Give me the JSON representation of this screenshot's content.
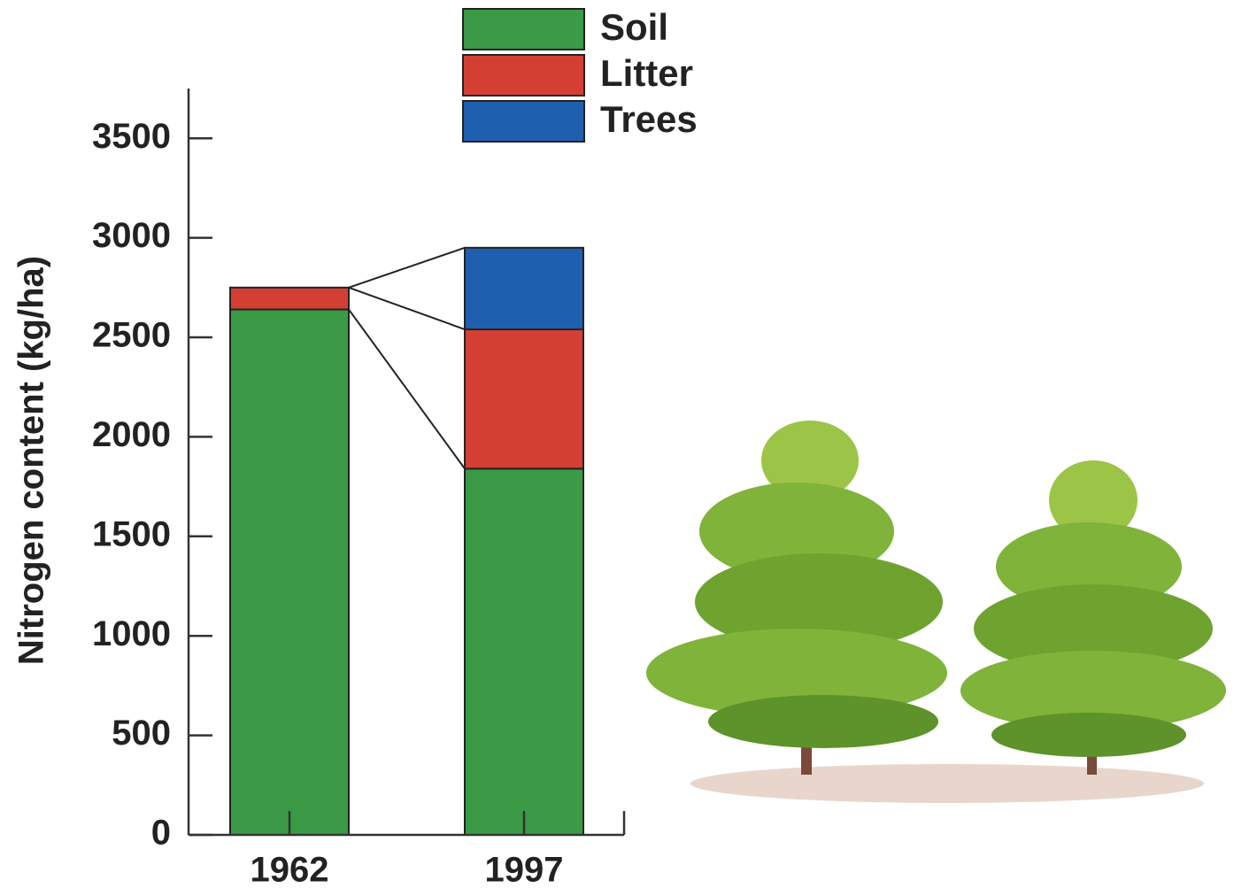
{
  "chart_data": {
    "type": "stacked-bar",
    "y_label": "Nitrogen content (kg/ha)",
    "categories": [
      "1962",
      "1997"
    ],
    "series": [
      {
        "name": "Soil",
        "color": "#3a9a45",
        "values": [
          2640,
          1840
        ]
      },
      {
        "name": "Litter",
        "color": "#d43f33",
        "values": [
          110,
          700
        ]
      },
      {
        "name": "Trees",
        "color": "#1f5fb0",
        "values": [
          0,
          410
        ]
      }
    ],
    "ylim": [
      0,
      3750
    ],
    "yticks": [
      0,
      500,
      1000,
      1500,
      2000,
      2500,
      3000,
      3500
    ]
  }
}
